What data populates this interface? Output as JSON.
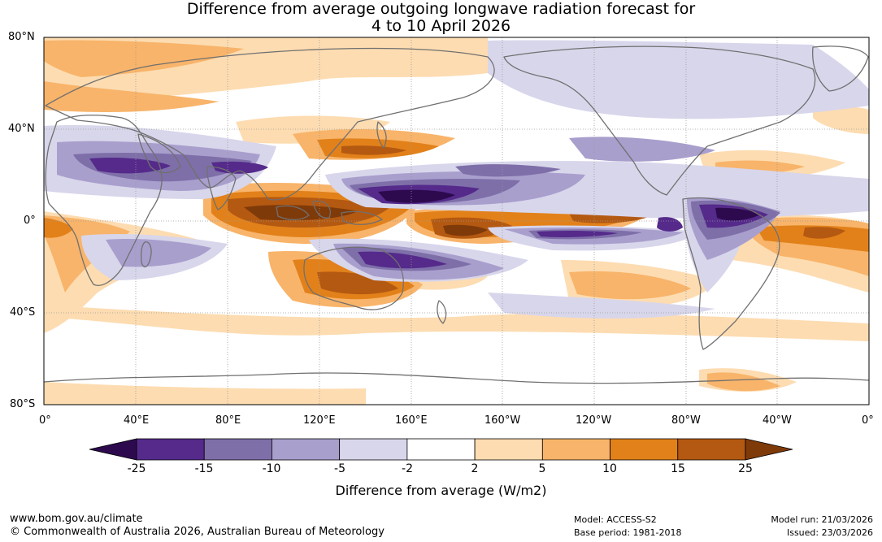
{
  "title": {
    "line1": "Difference from average outgoing longwave radiation forecast for",
    "line2": "4 to 10 April 2026"
  },
  "map": {
    "lat_labels": [
      "80°N",
      "40°N",
      "0°",
      "40°S",
      "80°S"
    ],
    "lon_labels": [
      "0°",
      "40°E",
      "80°E",
      "120°E",
      "160°E",
      "160°W",
      "120°W",
      "80°W",
      "40°W",
      "0°"
    ]
  },
  "colorbar": {
    "title": "Difference from average (W/m2)",
    "labels": [
      "-25",
      "-15",
      "-10",
      "-5",
      "-2",
      "2",
      "5",
      "10",
      "15",
      "25"
    ],
    "colors": {
      "below": "#2d0a4e",
      "bins": [
        "#552a8b",
        "#7e6fa9",
        "#a99fcd",
        "#d8d6eb",
        "#ffffff",
        "#fddcb1",
        "#f8b46a",
        "#e2811a",
        "#b45911"
      ],
      "above": "#7f3a09"
    }
  },
  "footer": {
    "website": "www.bom.gov.au/climate",
    "copyright": "© Commonwealth of Australia 2026, Australian Bureau of Meteorology",
    "model": "Model: ACCESS-S2",
    "base_period": "Base period: 1981-2018",
    "model_run": "Model run: 21/03/2026",
    "issued": "Issued: 23/03/2026"
  }
}
